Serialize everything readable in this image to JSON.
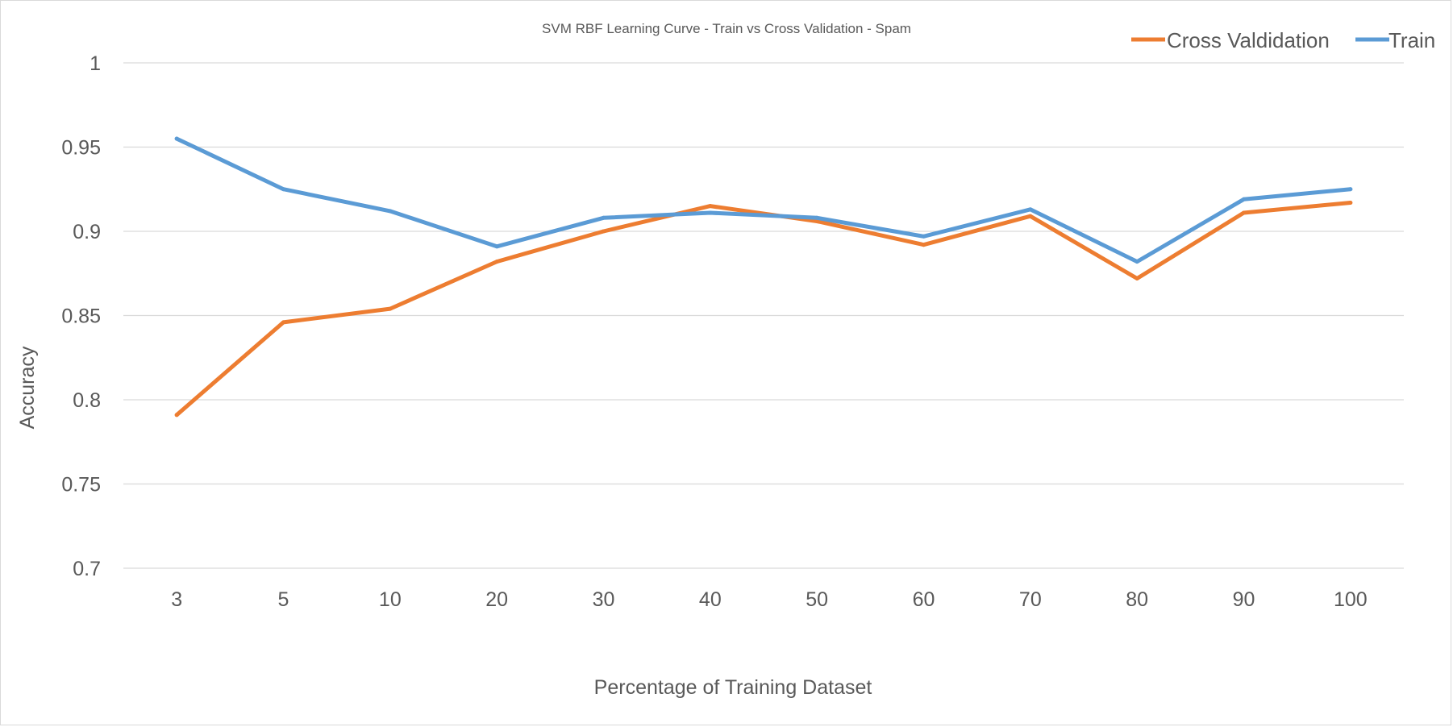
{
  "chart_data": {
    "type": "line",
    "title": "SVM RBF Learning Curve - Train vs Cross Validation - Spam",
    "xlabel": "Percentage of Training Dataset",
    "ylabel": "Accuracy",
    "categories": [
      "3",
      "5",
      "10",
      "20",
      "30",
      "40",
      "50",
      "60",
      "70",
      "80",
      "90",
      "100"
    ],
    "ylim": [
      0.7,
      1
    ],
    "yticks": [
      "0.7",
      "0.75",
      "0.8",
      "0.85",
      "0.9",
      "0.95",
      "1"
    ],
    "grid": true,
    "legend_position": "top-right",
    "series": [
      {
        "name": "Cross Valdidation",
        "color": "#ED7D31",
        "values": [
          0.791,
          0.846,
          0.854,
          0.882,
          0.9,
          0.915,
          0.906,
          0.892,
          0.909,
          0.872,
          0.911,
          0.917
        ]
      },
      {
        "name": "Train",
        "color": "#5B9BD5",
        "values": [
          0.955,
          0.925,
          0.912,
          0.891,
          0.908,
          0.911,
          0.908,
          0.897,
          0.913,
          0.882,
          0.919,
          0.925
        ]
      }
    ]
  }
}
